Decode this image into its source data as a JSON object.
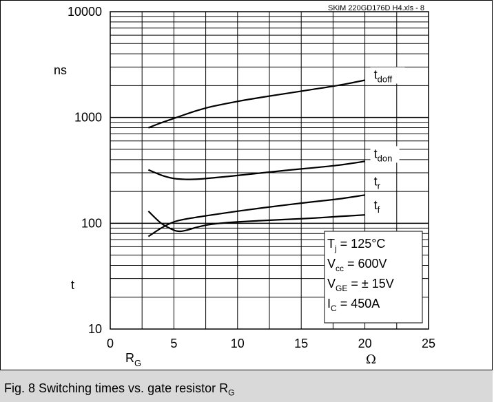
{
  "chart_data": {
    "type": "line",
    "source_label": "SKiM 220GD176D H4.xls - 8",
    "xlabel_main": "R",
    "xlabel_sub": "G",
    "x_unit": "Ω",
    "ylabel": "t",
    "y_unit": "ns",
    "xlim": [
      0,
      25
    ],
    "ylim": [
      10,
      10000
    ],
    "y_scale": "log",
    "x_ticks": [
      "0",
      "5",
      "10",
      "15",
      "20",
      "25"
    ],
    "y_ticks": [
      "10",
      "100",
      "1000",
      "10000"
    ],
    "grid": true,
    "series": [
      {
        "name_main": "t",
        "name_sub": "doff",
        "x": [
          3,
          4,
          5,
          6,
          7,
          8,
          10,
          12,
          14,
          16,
          18,
          20
        ],
        "values": [
          800,
          890,
          980,
          1080,
          1180,
          1270,
          1420,
          1560,
          1700,
          1850,
          2020,
          2250
        ]
      },
      {
        "name_main": "t",
        "name_sub": "don",
        "x": [
          3,
          4,
          5,
          6,
          7,
          8,
          10,
          12,
          14,
          16,
          18,
          20
        ],
        "values": [
          320,
          285,
          265,
          260,
          262,
          268,
          283,
          300,
          318,
          335,
          355,
          385
        ]
      },
      {
        "name_main": "t",
        "name_sub": "r",
        "x": [
          3,
          4,
          5,
          6,
          7,
          8,
          10,
          12,
          14,
          16,
          18,
          20
        ],
        "values": [
          75,
          90,
          103,
          110,
          115,
          120,
          130,
          140,
          150,
          160,
          170,
          185
        ]
      },
      {
        "name_main": "t",
        "name_sub": "f",
        "x": [
          3,
          4,
          5,
          5.5,
          6,
          7,
          8,
          10,
          12,
          14,
          16,
          18,
          20
        ],
        "values": [
          130,
          100,
          86,
          84,
          86,
          93,
          98,
          103,
          106,
          109,
          112,
          116,
          120
        ]
      }
    ],
    "conditions": [
      {
        "main": "T",
        "sub": "j",
        "rest": " = 125°C"
      },
      {
        "main": "V",
        "sub": "cc",
        "rest": " = 600V"
      },
      {
        "main": "V",
        "sub": "GE",
        "rest": " = ± 15V"
      },
      {
        "main": "I",
        "sub": "C",
        "rest": " = 450A"
      }
    ]
  },
  "caption": {
    "main": "Fig. 8 Switching times vs. gate resistor R",
    "sub": "G"
  }
}
